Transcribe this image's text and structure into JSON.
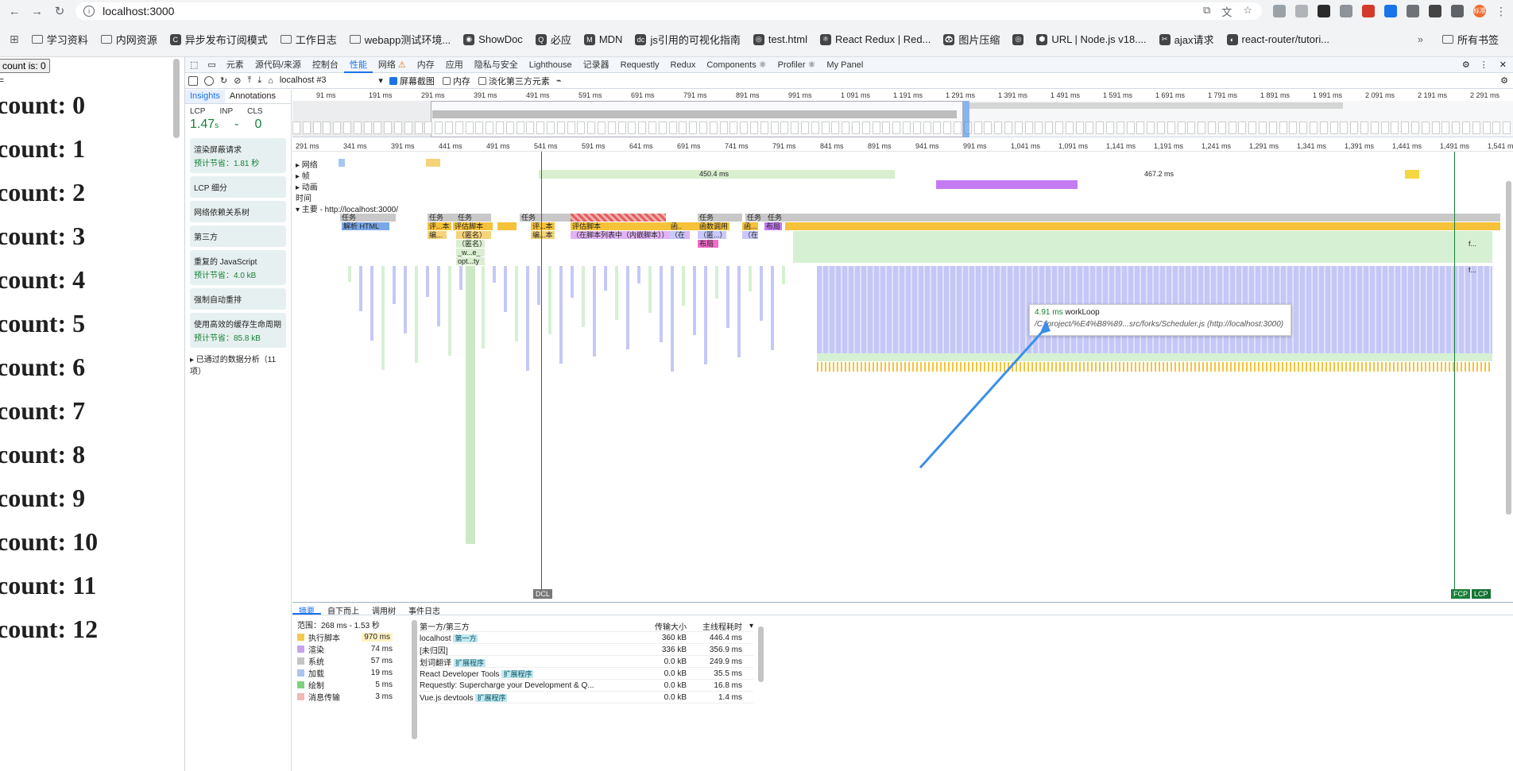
{
  "browser": {
    "url": "localhost:3000",
    "avatar": "标准"
  },
  "bookmarks": [
    {
      "label": "学习资料",
      "type": "folder"
    },
    {
      "label": "内网资源",
      "type": "folder"
    },
    {
      "label": "异步发布订阅模式",
      "type": "site",
      "icon": "C"
    },
    {
      "label": "工作日志",
      "type": "folder"
    },
    {
      "label": "webapp测试环境...",
      "type": "folder"
    },
    {
      "label": "ShowDoc",
      "type": "site",
      "icon": "◉"
    },
    {
      "label": "必应",
      "type": "site",
      "icon": "Q"
    },
    {
      "label": "MDN",
      "type": "site",
      "icon": "M"
    },
    {
      "label": "js引用的可视化指南",
      "type": "site",
      "icon": "dc"
    },
    {
      "label": "test.html",
      "type": "site",
      "icon": "◎"
    },
    {
      "label": "React Redux | Red...",
      "type": "site",
      "icon": "⚛"
    },
    {
      "label": "图片压缩",
      "type": "site",
      "icon": "🐼"
    },
    {
      "label": "",
      "type": "site",
      "icon": "◎"
    },
    {
      "label": "URL | Node.js v18....",
      "type": "site",
      "icon": "⬢"
    },
    {
      "label": "ajax请求",
      "type": "site",
      "icon": "✂"
    },
    {
      "label": "react-router/tutori...",
      "type": "site",
      "icon": "◐"
    }
  ],
  "bookmarks_right": "所有书签",
  "page": {
    "button": "count is: 0",
    "lines": [
      "count: 0",
      "count: 1",
      "count: 2",
      "count: 3",
      "count: 4",
      "count: 5",
      "count: 6",
      "count: 7",
      "count: 8",
      "count: 9",
      "count: 10",
      "count: 11",
      "count: 12"
    ]
  },
  "devtools": {
    "tabs": [
      "元素",
      "源代码/来源",
      "控制台",
      "性能",
      "网络",
      "内存",
      "应用",
      "隐私与安全",
      "Lighthouse",
      "记录器",
      "Requestly",
      "Redux",
      "Components ⚛",
      "Profiler ⚛",
      "My Panel"
    ],
    "active_tab": "性能",
    "recording": "localhost #3",
    "toolbar_checks": [
      {
        "label": "屏幕截图",
        "checked": true
      },
      {
        "label": "内存",
        "checked": false
      },
      {
        "label": "淡化第三方元素",
        "checked": false
      }
    ],
    "insights_tabs": [
      "Insights",
      "Annotations"
    ],
    "metrics": {
      "labels": [
        "LCP",
        "INP",
        "CLS"
      ],
      "lcp": "1.47",
      "lcp_unit": "s",
      "inp": "-",
      "cls": "0"
    },
    "insight_cards": [
      {
        "title": "渲染屏蔽请求",
        "save": "预计节省：1.81 秒"
      },
      {
        "title": "LCP 细分",
        "save": ""
      },
      {
        "title": "网络依赖关系树",
        "save": ""
      },
      {
        "title": "第三方",
        "save": ""
      },
      {
        "title": "重复的 JavaScript",
        "save": "预计节省：4.0 kB"
      },
      {
        "title": "强制自动重排",
        "save": ""
      },
      {
        "title": "使用高效的缓存生命周期",
        "save": "预计节省：85.8 kB"
      }
    ],
    "passed": "▸ 已通过的数据分析（11 项）",
    "overview_ticks": [
      "91 ms",
      "191 ms",
      "291 ms",
      "391 ms",
      "491 ms",
      "591 ms",
      "691 ms",
      "791 ms",
      "891 ms",
      "991 ms",
      "1 091 ms",
      "1 191 ms",
      "1 291 ms",
      "1 391 ms",
      "1 491 ms",
      "1 591 ms",
      "1 691 ms",
      "1 791 ms",
      "1 891 ms",
      "1 991 ms",
      "2 091 ms",
      "2 191 ms",
      "2 291 ms"
    ],
    "main_ticks": [
      "291 ms",
      "341 ms",
      "391 ms",
      "441 ms",
      "491 ms",
      "541 ms",
      "591 ms",
      "641 ms",
      "691 ms",
      "741 ms",
      "791 ms",
      "841 ms",
      "891 ms",
      "941 ms",
      "991 ms",
      "1,041 ms",
      "1,091 ms",
      "1,141 ms",
      "1,191 ms",
      "1,241 ms",
      "1,291 ms",
      "1,341 ms",
      "1,391 ms",
      "1,441 ms",
      "1,491 ms",
      "1,541 ms"
    ],
    "tracks": [
      "▸ 网络",
      "▸ 帧",
      "▸ 动画",
      "时间",
      "▾ 主要 - http://localhost:3000/"
    ],
    "frames": [
      "450.4 ms",
      "467.2 ms"
    ],
    "task_labels": [
      "任务",
      "任务",
      "任务",
      "任务",
      "任务",
      "任务",
      "任务"
    ],
    "flame_labels": [
      "解析 HTML",
      "评...本",
      "评估脚本",
      "评...本",
      "评估脚本",
      "函...",
      "函数调用",
      "函...",
      "布局",
      "编...",
      "（匿名）",
      "编...本",
      "（在脚本列表中（内嵌脚本））",
      "（在...",
      "（匿...）",
      "（在...",
      "（匿名）",
      "_w...e_",
      "布局",
      "f...",
      "opt...ty",
      "f..."
    ],
    "tooltip": {
      "ms": "4.91 ms",
      "name": "workLoop",
      "path": "/C:/project/%E4%B8%89...src/forks/Scheduler.js (http://localhost:3000)"
    },
    "markers": {
      "dcl": "DCL",
      "fcp": "FCP",
      "lcp": "LCP"
    },
    "bottom_tabs": [
      "摘要",
      "自下而上",
      "调用树",
      "事件日志"
    ],
    "range": "范围：268 ms - 1.53 秒",
    "summary": [
      {
        "label": "执行脚本",
        "ms": "970 ms",
        "color": "#f2c94c"
      },
      {
        "label": "渲染",
        "ms": "74 ms",
        "color": "#c8a2f0"
      },
      {
        "label": "系统",
        "ms": "57 ms",
        "color": "#c4c4c4"
      },
      {
        "label": "加载",
        "ms": "19 ms",
        "color": "#a8c6f0"
      },
      {
        "label": "绘制",
        "ms": "5 ms",
        "color": "#7fd17f"
      },
      {
        "label": "消息传输",
        "ms": "3 ms",
        "color": "#f0b8b8"
      }
    ],
    "third_party": {
      "headers": [
        "第一方/第三方",
        "传输大小",
        "主线程耗时"
      ],
      "rows": [
        {
          "name": "localhost",
          "badge": "第一方",
          "size": "360 kB",
          "time": "446.4 ms"
        },
        {
          "name": "[未归因]",
          "badge": "",
          "size": "336 kB",
          "time": "356.9 ms"
        },
        {
          "name": "划词翻译",
          "badge": "扩展程序",
          "size": "0.0 kB",
          "time": "249.9 ms"
        },
        {
          "name": "React Developer Tools",
          "badge": "扩展程序",
          "size": "0.0 kB",
          "time": "35.5 ms"
        },
        {
          "name": "Requestly: Supercharge your Development & Q...",
          "badge": "",
          "size": "0.0 kB",
          "time": "16.8 ms"
        },
        {
          "name": "Vue.js devtools",
          "badge": "扩展程序",
          "size": "0.0 kB",
          "time": "1.4 ms"
        }
      ]
    }
  }
}
